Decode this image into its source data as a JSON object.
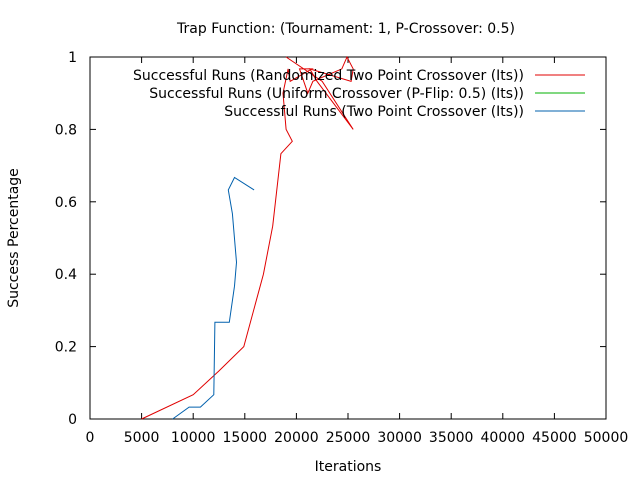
{
  "chart_data": {
    "type": "line",
    "title": "Trap Function:  (Tournament: 1, P-Crossover: 0.5)",
    "xlabel": "Iterations",
    "ylabel": "Success Percentage",
    "xlim": [
      0,
      50000
    ],
    "ylim": [
      0,
      1
    ],
    "x_ticks": [
      0,
      5000,
      10000,
      15000,
      20000,
      25000,
      30000,
      35000,
      40000,
      45000,
      50000
    ],
    "x_tick_labels": [
      "0",
      "5000",
      "10000",
      "15000",
      "20000",
      "25000",
      "30000",
      "35000",
      "40000",
      "45000",
      "50000"
    ],
    "y_ticks": [
      0,
      0.2,
      0.4,
      0.6,
      0.8,
      1
    ],
    "y_tick_labels": [
      "0",
      "0.2",
      "0.4",
      "0.6",
      "0.8",
      "1"
    ],
    "grid": false,
    "legend_position": "top-right",
    "series": [
      {
        "name": "Successful Runs (Randomized Two Point Crossover (Its))",
        "color": "#e00000",
        "points": [
          [
            5000,
            0.0
          ],
          [
            10000,
            0.067
          ],
          [
            12500,
            0.133
          ],
          [
            14900,
            0.2
          ],
          [
            16800,
            0.4
          ],
          [
            17700,
            0.533
          ],
          [
            18500,
            0.733
          ],
          [
            19600,
            0.767
          ],
          [
            19000,
            0.8
          ],
          [
            18700,
            0.9
          ],
          [
            19200,
            0.967
          ],
          [
            19400,
            0.933
          ],
          [
            21500,
            0.967
          ],
          [
            20300,
            0.967
          ],
          [
            21100,
            0.9
          ],
          [
            21600,
            0.933
          ],
          [
            24400,
            0.967
          ],
          [
            24900,
            1.0
          ],
          [
            25500,
            0.967
          ],
          [
            25300,
            0.933
          ],
          [
            21300,
            0.967
          ],
          [
            22000,
            0.933
          ],
          [
            25500,
            0.8
          ],
          [
            22500,
            0.933
          ],
          [
            19000,
            1.0
          ]
        ]
      },
      {
        "name": "Uniform Crossover (P-Flip: 0.5) (Its)",
        "legend_label": "Successful Runs (Uniform Crossover (P-Flip: 0.5) (Its))",
        "color": "#00b000",
        "points": []
      },
      {
        "name": "Successful Runs (Two Point Crossover (Its))",
        "color": "#0060ad",
        "points": [
          [
            8000,
            0.0
          ],
          [
            9600,
            0.033
          ],
          [
            10700,
            0.033
          ],
          [
            12000,
            0.067
          ],
          [
            12100,
            0.267
          ],
          [
            13500,
            0.267
          ],
          [
            14000,
            0.367
          ],
          [
            14200,
            0.433
          ],
          [
            13800,
            0.567
          ],
          [
            13400,
            0.633
          ],
          [
            14000,
            0.667
          ],
          [
            15900,
            0.633
          ]
        ]
      }
    ]
  }
}
